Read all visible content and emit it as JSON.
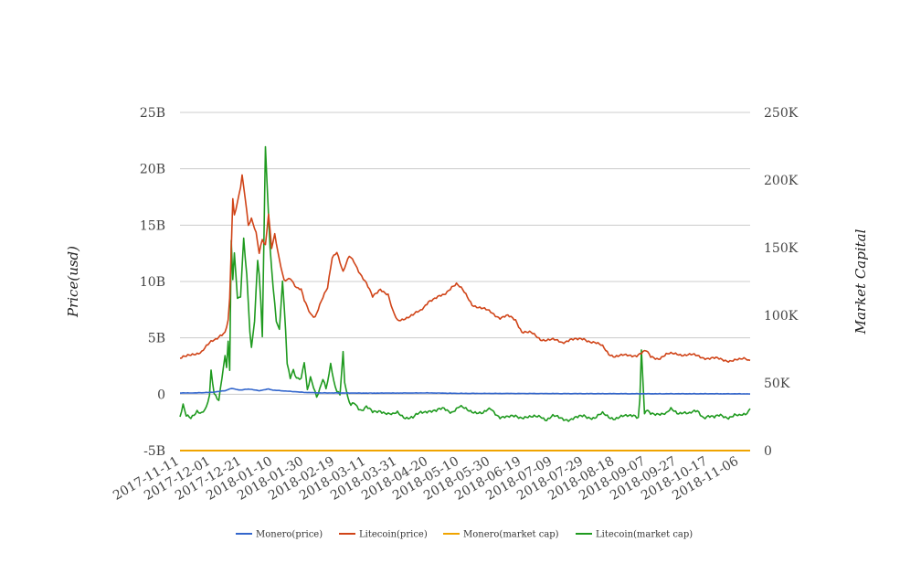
{
  "chart_data": {
    "type": "line",
    "title": "",
    "xlabel": "",
    "ylabel_left": "Price(usd)",
    "ylabel_right": "Market Capital",
    "grid": true,
    "legend_position": "bottom-center",
    "x_ticks": [
      "2017-11-11",
      "2017-12-01",
      "2017-12-21",
      "2018-01-10",
      "2018-01-30",
      "2018-02-19",
      "2018-03-11",
      "2018-03-31",
      "2018-04-20",
      "2018-05-10",
      "2018-05-30",
      "2018-06-19",
      "2018-07-09",
      "2018-07-29",
      "2018-08-18",
      "2018-09-07",
      "2018-09-27",
      "2018-10-17",
      "2018-11-06"
    ],
    "x_range": [
      "2017-11-11",
      "2018-11-13"
    ],
    "y_left_ticks": [
      "-5B",
      "0",
      "5B",
      "10B",
      "15B",
      "20B",
      "25B"
    ],
    "y_left_range": [
      -5,
      25
    ],
    "y_left_unit": "B",
    "y_right_ticks": [
      "0",
      "50K",
      "100K",
      "150K",
      "200K",
      "250K"
    ],
    "y_right_range": [
      0,
      250000
    ],
    "series": [
      {
        "name": "Monero(price)",
        "axis": "left",
        "color": "#3366cc",
        "points": [
          [
            "2017-11-11",
            0.1
          ],
          [
            "2017-11-20",
            0.1
          ],
          [
            "2017-12-01",
            0.15
          ],
          [
            "2017-12-10",
            0.3
          ],
          [
            "2017-12-14",
            0.5
          ],
          [
            "2017-12-20",
            0.35
          ],
          [
            "2017-12-25",
            0.45
          ],
          [
            "2018-01-01",
            0.3
          ],
          [
            "2018-01-07",
            0.45
          ],
          [
            "2018-01-10",
            0.35
          ],
          [
            "2018-01-20",
            0.25
          ],
          [
            "2018-01-30",
            0.15
          ],
          [
            "2018-02-10",
            0.1
          ],
          [
            "2018-02-19",
            0.1
          ],
          [
            "2018-03-11",
            0.08
          ],
          [
            "2018-04-20",
            0.1
          ],
          [
            "2018-05-10",
            0.06
          ],
          [
            "2018-06-19",
            0.05
          ],
          [
            "2018-07-29",
            0.04
          ],
          [
            "2018-09-07",
            0.03
          ],
          [
            "2018-10-17",
            0.03
          ],
          [
            "2018-11-13",
            0.02
          ]
        ]
      },
      {
        "name": "Litecoin(price)",
        "axis": "left",
        "color": "#d04418",
        "points": [
          [
            "2017-11-11",
            3.2
          ],
          [
            "2017-11-15",
            3.3
          ],
          [
            "2017-11-20",
            3.6
          ],
          [
            "2017-11-25",
            3.8
          ],
          [
            "2017-11-28",
            4.2
          ],
          [
            "2017-12-01",
            4.6
          ],
          [
            "2017-12-04",
            4.9
          ],
          [
            "2017-12-07",
            5.3
          ],
          [
            "2017-12-10",
            5.5
          ],
          [
            "2017-12-12",
            6.5
          ],
          [
            "2017-12-13",
            8.4
          ],
          [
            "2017-12-15",
            17.2
          ],
          [
            "2017-12-16",
            15.8
          ],
          [
            "2017-12-18",
            17.0
          ],
          [
            "2017-12-20",
            18.5
          ],
          [
            "2017-12-21",
            19.5
          ],
          [
            "2017-12-23",
            17.5
          ],
          [
            "2017-12-25",
            15.0
          ],
          [
            "2017-12-27",
            15.5
          ],
          [
            "2017-12-30",
            14.2
          ],
          [
            "2018-01-01",
            12.5
          ],
          [
            "2018-01-03",
            13.8
          ],
          [
            "2018-01-05",
            13.3
          ],
          [
            "2018-01-07",
            16.1
          ],
          [
            "2018-01-09",
            13.0
          ],
          [
            "2018-01-11",
            14.1
          ],
          [
            "2018-01-14",
            11.8
          ],
          [
            "2018-01-17",
            10.1
          ],
          [
            "2018-01-21",
            10.4
          ],
          [
            "2018-01-25",
            9.4
          ],
          [
            "2018-01-28",
            9.2
          ],
          [
            "2018-01-30",
            8.3
          ],
          [
            "2018-02-03",
            7.2
          ],
          [
            "2018-02-06",
            6.9
          ],
          [
            "2018-02-10",
            8.2
          ],
          [
            "2018-02-14",
            9.4
          ],
          [
            "2018-02-17",
            12.2
          ],
          [
            "2018-02-20",
            12.7
          ],
          [
            "2018-02-24",
            10.8
          ],
          [
            "2018-02-28",
            12.2
          ],
          [
            "2018-03-03",
            11.8
          ],
          [
            "2018-03-06",
            11.0
          ],
          [
            "2018-03-11",
            9.8
          ],
          [
            "2018-03-15",
            8.6
          ],
          [
            "2018-03-20",
            9.4
          ],
          [
            "2018-03-25",
            8.8
          ],
          [
            "2018-03-28",
            7.3
          ],
          [
            "2018-03-31",
            6.5
          ],
          [
            "2018-04-05",
            6.8
          ],
          [
            "2018-04-10",
            7.0
          ],
          [
            "2018-04-15",
            7.4
          ],
          [
            "2018-04-20",
            8.3
          ],
          [
            "2018-04-25",
            8.5
          ],
          [
            "2018-04-30",
            8.8
          ],
          [
            "2018-05-05",
            9.6
          ],
          [
            "2018-05-08",
            9.8
          ],
          [
            "2018-05-12",
            9.2
          ],
          [
            "2018-05-18",
            8.0
          ],
          [
            "2018-05-24",
            7.6
          ],
          [
            "2018-05-30",
            7.3
          ],
          [
            "2018-06-05",
            6.8
          ],
          [
            "2018-06-10",
            6.9
          ],
          [
            "2018-06-15",
            6.6
          ],
          [
            "2018-06-19",
            5.6
          ],
          [
            "2018-06-25",
            5.4
          ],
          [
            "2018-07-01",
            4.9
          ],
          [
            "2018-07-09",
            4.8
          ],
          [
            "2018-07-15",
            4.6
          ],
          [
            "2018-07-20",
            4.9
          ],
          [
            "2018-07-25",
            4.8
          ],
          [
            "2018-07-29",
            4.9
          ],
          [
            "2018-08-05",
            4.6
          ],
          [
            "2018-08-10",
            4.2
          ],
          [
            "2018-08-14",
            3.6
          ],
          [
            "2018-08-18",
            3.4
          ],
          [
            "2018-08-25",
            3.4
          ],
          [
            "2018-09-01",
            3.5
          ],
          [
            "2018-09-07",
            3.8
          ],
          [
            "2018-09-10",
            3.3
          ],
          [
            "2018-09-15",
            3.2
          ],
          [
            "2018-09-20",
            3.5
          ],
          [
            "2018-09-27",
            3.6
          ],
          [
            "2018-10-03",
            3.5
          ],
          [
            "2018-10-10",
            3.4
          ],
          [
            "2018-10-17",
            3.2
          ],
          [
            "2018-10-25",
            3.1
          ],
          [
            "2018-10-31",
            3.0
          ],
          [
            "2018-11-06",
            3.0
          ],
          [
            "2018-11-10",
            3.2
          ],
          [
            "2018-11-13",
            3.0
          ]
        ]
      },
      {
        "name": "Monero(market cap)",
        "axis": "right",
        "color": "#f0a400",
        "points": [
          [
            "2017-11-11",
            0
          ],
          [
            "2018-11-13",
            0
          ]
        ]
      },
      {
        "name": "Litecoin(market cap)",
        "axis": "right",
        "color": "#1f9a1f",
        "points": [
          [
            "2017-11-11",
            25000
          ],
          [
            "2017-11-13",
            33000
          ],
          [
            "2017-11-15",
            25000
          ],
          [
            "2017-11-18",
            24000
          ],
          [
            "2017-11-22",
            30000
          ],
          [
            "2017-11-25",
            28000
          ],
          [
            "2017-11-28",
            31000
          ],
          [
            "2017-11-30",
            40000
          ],
          [
            "2017-12-01",
            58000
          ],
          [
            "2017-12-03",
            42000
          ],
          [
            "2017-12-06",
            38000
          ],
          [
            "2017-12-08",
            55000
          ],
          [
            "2017-12-10",
            70000
          ],
          [
            "2017-12-11",
            62000
          ],
          [
            "2017-12-12",
            80000
          ],
          [
            "2017-12-13",
            58000
          ],
          [
            "2017-12-14",
            155000
          ],
          [
            "2017-12-15",
            125000
          ],
          [
            "2017-12-16",
            145000
          ],
          [
            "2017-12-17",
            130000
          ],
          [
            "2017-12-18",
            112000
          ],
          [
            "2017-12-20",
            115000
          ],
          [
            "2017-12-22",
            158000
          ],
          [
            "2017-12-24",
            130000
          ],
          [
            "2017-12-26",
            88000
          ],
          [
            "2017-12-27",
            75000
          ],
          [
            "2017-12-29",
            95000
          ],
          [
            "2017-12-31",
            140000
          ],
          [
            "2018-01-01",
            130000
          ],
          [
            "2018-01-02",
            110000
          ],
          [
            "2018-01-03",
            85000
          ],
          [
            "2018-01-05",
            225000
          ],
          [
            "2018-01-06",
            200000
          ],
          [
            "2018-01-08",
            150000
          ],
          [
            "2018-01-10",
            120000
          ],
          [
            "2018-01-12",
            95000
          ],
          [
            "2018-01-14",
            88000
          ],
          [
            "2018-01-16",
            125000
          ],
          [
            "2018-01-18",
            90000
          ],
          [
            "2018-01-19",
            65000
          ],
          [
            "2018-01-21",
            55000
          ],
          [
            "2018-01-23",
            60000
          ],
          [
            "2018-01-25",
            53000
          ],
          [
            "2018-01-28",
            52000
          ],
          [
            "2018-01-30",
            65000
          ],
          [
            "2018-02-01",
            45000
          ],
          [
            "2018-02-03",
            55000
          ],
          [
            "2018-02-05",
            48000
          ],
          [
            "2018-02-07",
            40000
          ],
          [
            "2018-02-09",
            45000
          ],
          [
            "2018-02-11",
            52000
          ],
          [
            "2018-02-13",
            45000
          ],
          [
            "2018-02-15",
            56000
          ],
          [
            "2018-02-16",
            65000
          ],
          [
            "2018-02-18",
            52000
          ],
          [
            "2018-02-20",
            45000
          ],
          [
            "2018-02-22",
            42000
          ],
          [
            "2018-02-24",
            72000
          ],
          [
            "2018-02-25",
            50000
          ],
          [
            "2018-02-27",
            38000
          ],
          [
            "2018-03-01",
            33000
          ],
          [
            "2018-03-03",
            36000
          ],
          [
            "2018-03-06",
            32000
          ],
          [
            "2018-03-08",
            30000
          ],
          [
            "2018-03-11",
            32000
          ],
          [
            "2018-03-15",
            28000
          ],
          [
            "2018-03-20",
            30000
          ],
          [
            "2018-03-25",
            27000
          ],
          [
            "2018-03-28",
            26000
          ],
          [
            "2018-03-31",
            28000
          ],
          [
            "2018-04-05",
            25000
          ],
          [
            "2018-04-10",
            24000
          ],
          [
            "2018-04-15",
            28000
          ],
          [
            "2018-04-20",
            30000
          ],
          [
            "2018-04-25",
            29000
          ],
          [
            "2018-04-30",
            31000
          ],
          [
            "2018-05-05",
            29000
          ],
          [
            "2018-05-10",
            32000
          ],
          [
            "2018-05-15",
            30000
          ],
          [
            "2018-05-20",
            29000
          ],
          [
            "2018-05-25",
            27000
          ],
          [
            "2018-05-30",
            31000
          ],
          [
            "2018-06-05",
            25000
          ],
          [
            "2018-06-10",
            24000
          ],
          [
            "2018-06-15",
            26000
          ],
          [
            "2018-06-19",
            25000
          ],
          [
            "2018-06-25",
            24000
          ],
          [
            "2018-07-01",
            26000
          ],
          [
            "2018-07-05",
            23000
          ],
          [
            "2018-07-09",
            25000
          ],
          [
            "2018-07-15",
            24000
          ],
          [
            "2018-07-20",
            23000
          ],
          [
            "2018-07-25",
            24000
          ],
          [
            "2018-07-29",
            26000
          ],
          [
            "2018-08-05",
            24000
          ],
          [
            "2018-08-10",
            27000
          ],
          [
            "2018-08-15",
            25000
          ],
          [
            "2018-08-18",
            24000
          ],
          [
            "2018-08-25",
            25000
          ],
          [
            "2018-08-30",
            27000
          ],
          [
            "2018-09-02",
            25000
          ],
          [
            "2018-09-03",
            38000
          ],
          [
            "2018-09-04",
            75000
          ],
          [
            "2018-09-05",
            50000
          ],
          [
            "2018-09-06",
            26000
          ],
          [
            "2018-09-07",
            29000
          ],
          [
            "2018-09-10",
            27000
          ],
          [
            "2018-09-15",
            28000
          ],
          [
            "2018-09-20",
            27000
          ],
          [
            "2018-09-23",
            30000
          ],
          [
            "2018-09-27",
            28000
          ],
          [
            "2018-10-01",
            29000
          ],
          [
            "2018-10-05",
            27000
          ],
          [
            "2018-10-10",
            29000
          ],
          [
            "2018-10-14",
            25000
          ],
          [
            "2018-10-17",
            26000
          ],
          [
            "2018-10-21",
            24000
          ],
          [
            "2018-10-25",
            26000
          ],
          [
            "2018-10-30",
            25000
          ],
          [
            "2018-11-03",
            26000
          ],
          [
            "2018-11-06",
            25000
          ],
          [
            "2018-11-10",
            27000
          ],
          [
            "2018-11-13",
            31000
          ]
        ]
      }
    ]
  }
}
